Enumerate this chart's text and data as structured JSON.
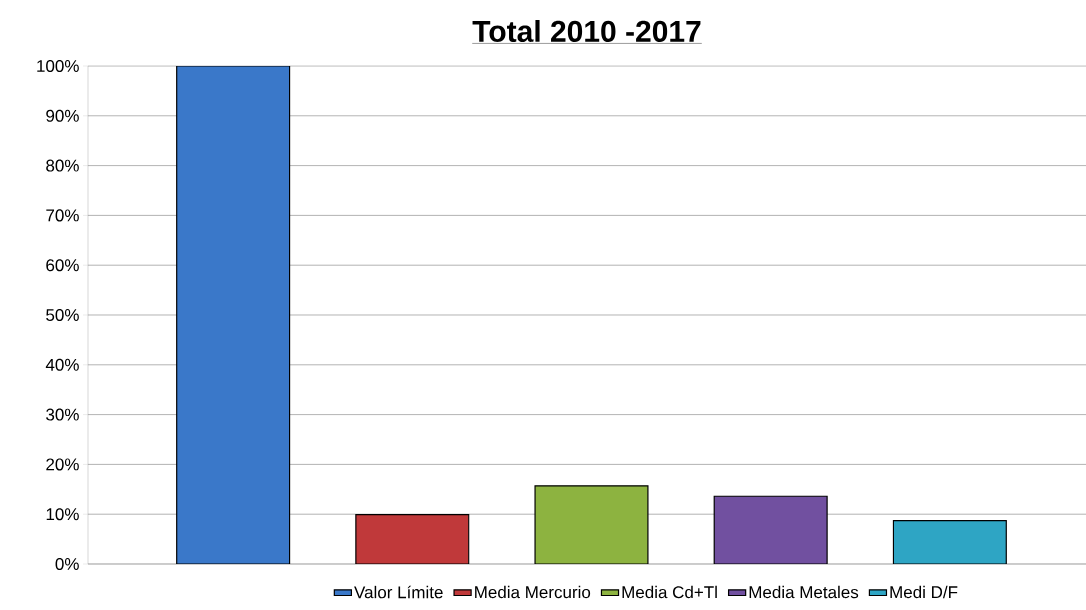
{
  "chart_data": {
    "type": "bar",
    "title": "Total 2010 -2017",
    "categories": [
      null,
      null,
      null,
      null,
      null
    ],
    "series": [
      {
        "name": "Valor Límite",
        "color": "#3a78c9",
        "values": [
          100,
          null,
          null,
          null,
          null
        ]
      },
      {
        "name": "Media Mercurio",
        "color": "#c0393a",
        "values": [
          null,
          9.9,
          null,
          null,
          null
        ]
      },
      {
        "name": "Media Cd+Tl",
        "color": "#8db340",
        "values": [
          null,
          null,
          15.7,
          null,
          null
        ]
      },
      {
        "name": "Media Metales",
        "color": "#7150a0",
        "values": [
          null,
          null,
          null,
          13.6,
          null
        ]
      },
      {
        "name": "Medi D/F",
        "color": "#2ea5c4",
        "values": [
          null,
          null,
          null,
          null,
          8.7
        ]
      }
    ],
    "ylim": [
      0,
      100
    ],
    "yticks": [
      {
        "value": 0,
        "label": "0%"
      },
      {
        "value": 10,
        "label": "10%"
      },
      {
        "value": 20,
        "label": "20%"
      },
      {
        "value": 30,
        "label": "30%"
      },
      {
        "value": 40,
        "label": "40%"
      },
      {
        "value": 50,
        "label": "50%"
      },
      {
        "value": 60,
        "label": "60%"
      },
      {
        "value": 70,
        "label": "70%"
      },
      {
        "value": 80,
        "label": "80%"
      },
      {
        "value": 90,
        "label": "90%"
      },
      {
        "value": 100,
        "label": "100%"
      }
    ],
    "grid": "y",
    "legend": "bottom"
  }
}
